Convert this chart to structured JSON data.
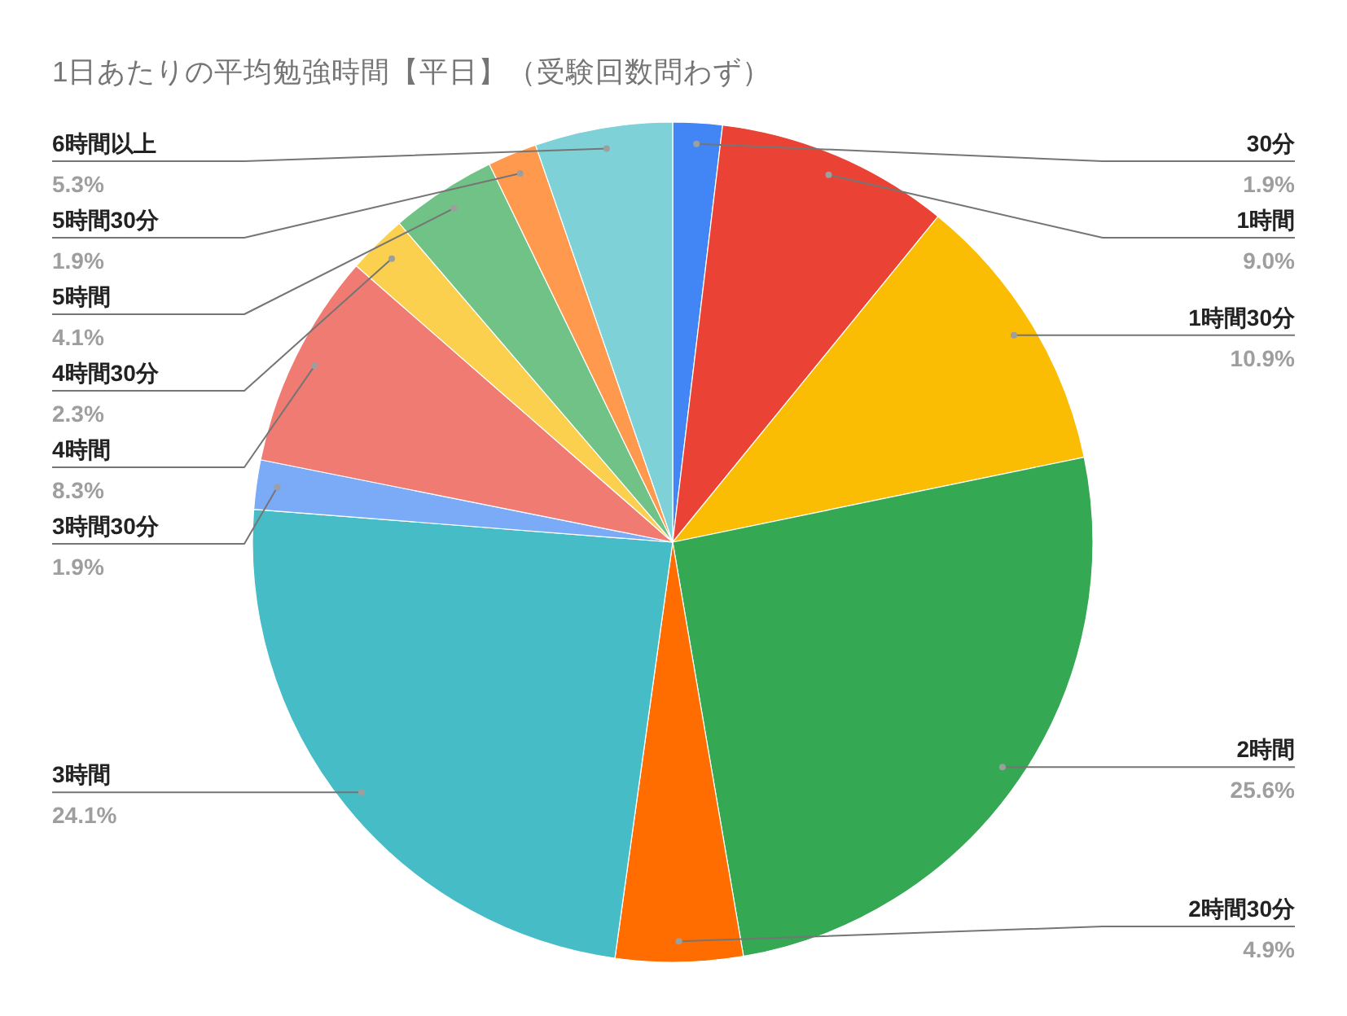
{
  "chart_data": {
    "type": "pie",
    "title": "1日あたりの平均勉強時間【平日】（受験回数問わず）",
    "categories": [
      "30分",
      "1時間",
      "1時間30分",
      "2時間",
      "2時間30分",
      "3時間",
      "3時間30分",
      "4時間",
      "4時間30分",
      "5時間",
      "5時間30分",
      "6時間以上"
    ],
    "values": [
      1.9,
      9.0,
      10.9,
      25.6,
      4.9,
      24.1,
      1.9,
      8.3,
      2.3,
      4.1,
      1.9,
      5.3
    ],
    "value_labels": [
      "1.9%",
      "9.0%",
      "10.9%",
      "25.6%",
      "4.9%",
      "24.1%",
      "1.9%",
      "8.3%",
      "2.3%",
      "4.1%",
      "1.9%",
      "5.3%"
    ],
    "colors": [
      "#4285f4",
      "#ea4335",
      "#fbbc04",
      "#34a853",
      "#ff6d01",
      "#46bdc6",
      "#7baaf7",
      "#f07b72",
      "#fcd04f",
      "#71c287",
      "#ff994d",
      "#7ed1d7"
    ]
  }
}
